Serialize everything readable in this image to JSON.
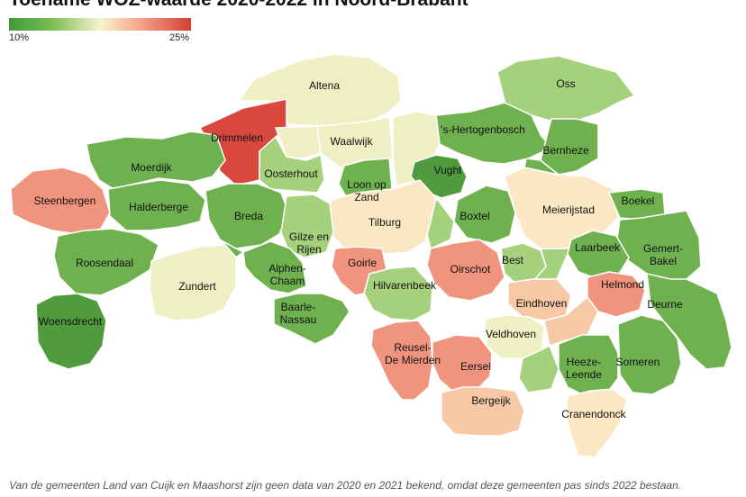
{
  "title": "Toename WOZ-waarde 2020-2022 in Noord-Brabant",
  "legend": {
    "min_label": "10%",
    "max_label": "25%"
  },
  "colors": {
    "dark_green": "#4f9b3d",
    "green": "#6fb14f",
    "light_green": "#a5d07c",
    "pale_yellow": "#eef0c4",
    "cream": "#fbe7c4",
    "peach": "#f8c8a6",
    "salmon": "#f0947e",
    "red": "#d9483c"
  },
  "municipalities": [
    {
      "name": "Altena",
      "color": "pale_yellow"
    },
    {
      "name": "Drimmelen",
      "color": "red"
    },
    {
      "name": "Waalwijk",
      "color": "pale_yellow"
    },
    {
      "name": "Oss",
      "color": "light_green"
    },
    {
      "name": "'s-Hertogenbosch",
      "color": "green"
    },
    {
      "name": "Bernheze",
      "color": "green"
    },
    {
      "name": "Moerdijk",
      "color": "green"
    },
    {
      "name": "Oosterhout",
      "color": "light_green"
    },
    {
      "name": "Vught",
      "color": "dark_green"
    },
    {
      "name": "Steenbergen",
      "color": "salmon"
    },
    {
      "name": "Halderberge",
      "color": "green"
    },
    {
      "name": "Loon op Zand",
      "color": "green"
    },
    {
      "name": "Breda",
      "color": "green"
    },
    {
      "name": "Tilburg",
      "color": "cream"
    },
    {
      "name": "Meierijstad",
      "color": "cream"
    },
    {
      "name": "Boxtel",
      "color": "green"
    },
    {
      "name": "Boekel",
      "color": "green"
    },
    {
      "name": "Gilze en Rijen",
      "color": "light_green"
    },
    {
      "name": "Gemert-Bakel",
      "color": "green"
    },
    {
      "name": "Roosendaal",
      "color": "green"
    },
    {
      "name": "Laarbeek",
      "color": "green"
    },
    {
      "name": "Goirle",
      "color": "salmon"
    },
    {
      "name": "Alphen-Chaam",
      "color": "green"
    },
    {
      "name": "Oirschot",
      "color": "salmon"
    },
    {
      "name": "Best",
      "color": "light_green"
    },
    {
      "name": "Zundert",
      "color": "pale_yellow"
    },
    {
      "name": "Hilvarenbeek",
      "color": "light_green"
    },
    {
      "name": "Helmond",
      "color": "salmon"
    },
    {
      "name": "Baarle-Nassau",
      "color": "green"
    },
    {
      "name": "Eindhoven",
      "color": "peach"
    },
    {
      "name": "Deurne",
      "color": "green"
    },
    {
      "name": "Woensdrecht",
      "color": "dark_green"
    },
    {
      "name": "Veldhoven",
      "color": "pale_yellow"
    },
    {
      "name": "Reusel-De Mierden",
      "color": "salmon"
    },
    {
      "name": "Eersel",
      "color": "salmon"
    },
    {
      "name": "Heeze-Leende",
      "color": "green"
    },
    {
      "name": "Someren",
      "color": "green"
    },
    {
      "name": "Bergeijk",
      "color": "peach"
    },
    {
      "name": "Cranendonck",
      "color": "cream"
    }
  ],
  "footnote": "Van de gemeenten Land van Cuijk en Maashorst zijn geen data van 2020 en 2021 bekend, omdat deze gemeenten pas sinds 2022 bestaan."
}
